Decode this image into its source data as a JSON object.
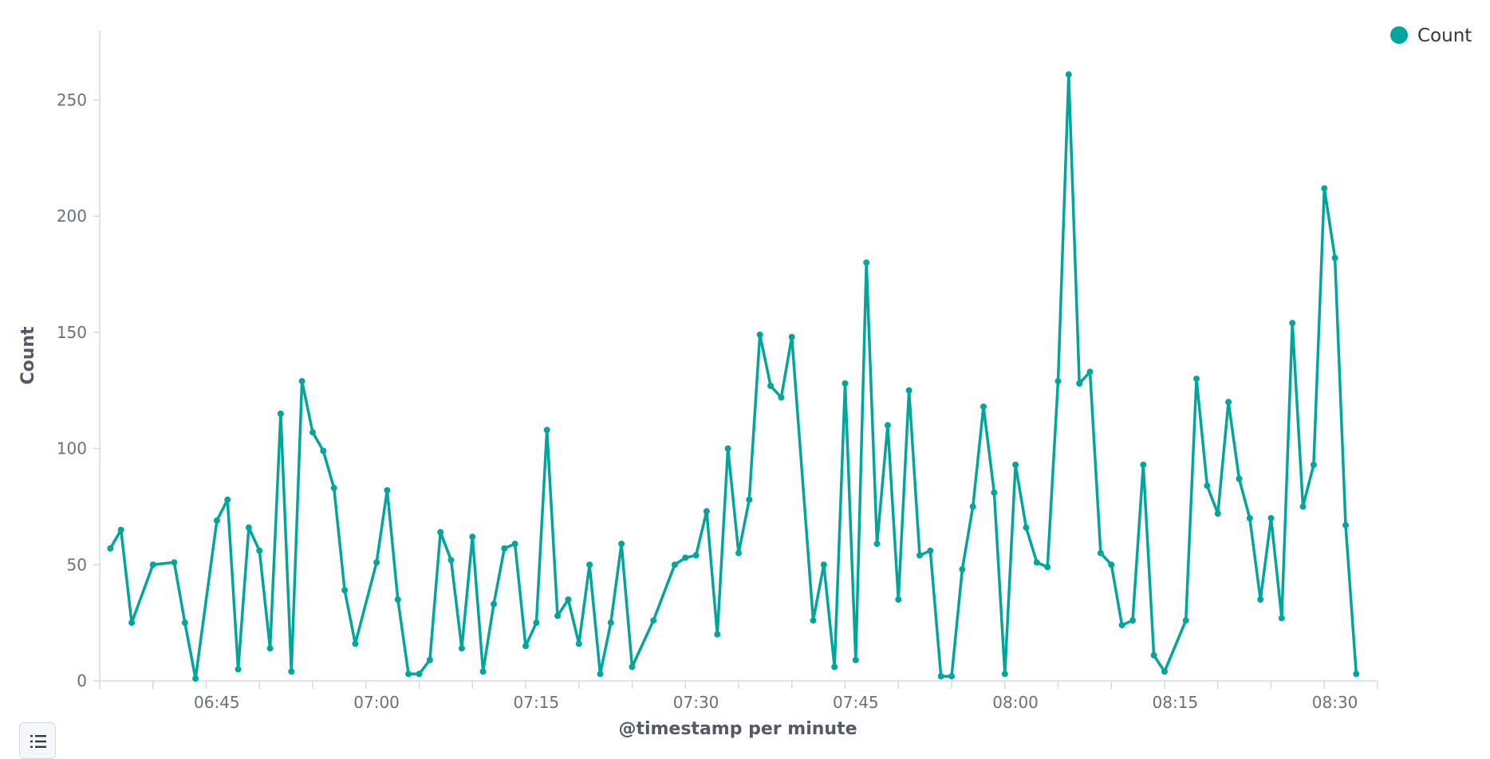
{
  "chart_data": {
    "type": "line",
    "xlabel": "@timestamp per minute",
    "ylabel": "Count",
    "x_ticks": [
      "06:45",
      "07:00",
      "07:15",
      "07:30",
      "07:45",
      "08:00",
      "08:15",
      "08:30"
    ],
    "y_ticks": [
      0,
      50,
      100,
      150,
      200,
      250
    ],
    "ylim": [
      0,
      280
    ],
    "xlim": [
      "06:34",
      "08:34"
    ],
    "grid": false,
    "legend_position": "top-right",
    "series": [
      {
        "name": "Count",
        "color": "#00a69b",
        "points": [
          {
            "x": "06:35",
            "y": 57
          },
          {
            "x": "06:36",
            "y": 65
          },
          {
            "x": "06:37",
            "y": 25
          },
          {
            "x": "06:39",
            "y": 50
          },
          {
            "x": "06:41",
            "y": 51
          },
          {
            "x": "06:42",
            "y": 25
          },
          {
            "x": "06:43",
            "y": 1
          },
          {
            "x": "06:45",
            "y": 69
          },
          {
            "x": "06:46",
            "y": 78
          },
          {
            "x": "06:47",
            "y": 5
          },
          {
            "x": "06:48",
            "y": 66
          },
          {
            "x": "06:49",
            "y": 56
          },
          {
            "x": "06:50",
            "y": 14
          },
          {
            "x": "06:51",
            "y": 115
          },
          {
            "x": "06:52",
            "y": 4
          },
          {
            "x": "06:53",
            "y": 129
          },
          {
            "x": "06:54",
            "y": 107
          },
          {
            "x": "06:55",
            "y": 99
          },
          {
            "x": "06:56",
            "y": 83
          },
          {
            "x": "06:57",
            "y": 39
          },
          {
            "x": "06:58",
            "y": 16
          },
          {
            "x": "07:00",
            "y": 51
          },
          {
            "x": "07:01",
            "y": 82
          },
          {
            "x": "07:02",
            "y": 35
          },
          {
            "x": "07:03",
            "y": 3
          },
          {
            "x": "07:04",
            "y": 3
          },
          {
            "x": "07:05",
            "y": 9
          },
          {
            "x": "07:06",
            "y": 64
          },
          {
            "x": "07:07",
            "y": 52
          },
          {
            "x": "07:08",
            "y": 14
          },
          {
            "x": "07:09",
            "y": 62
          },
          {
            "x": "07:10",
            "y": 4
          },
          {
            "x": "07:11",
            "y": 33
          },
          {
            "x": "07:12",
            "y": 57
          },
          {
            "x": "07:13",
            "y": 59
          },
          {
            "x": "07:14",
            "y": 15
          },
          {
            "x": "07:15",
            "y": 25
          },
          {
            "x": "07:16",
            "y": 108
          },
          {
            "x": "07:17",
            "y": 28
          },
          {
            "x": "07:18",
            "y": 35
          },
          {
            "x": "07:19",
            "y": 16
          },
          {
            "x": "07:20",
            "y": 50
          },
          {
            "x": "07:21",
            "y": 3
          },
          {
            "x": "07:22",
            "y": 25
          },
          {
            "x": "07:23",
            "y": 59
          },
          {
            "x": "07:24",
            "y": 6
          },
          {
            "x": "07:26",
            "y": 26
          },
          {
            "x": "07:28",
            "y": 50
          },
          {
            "x": "07:29",
            "y": 53
          },
          {
            "x": "07:30",
            "y": 54
          },
          {
            "x": "07:31",
            "y": 73
          },
          {
            "x": "07:32",
            "y": 20
          },
          {
            "x": "07:33",
            "y": 100
          },
          {
            "x": "07:34",
            "y": 55
          },
          {
            "x": "07:35",
            "y": 78
          },
          {
            "x": "07:36",
            "y": 149
          },
          {
            "x": "07:37",
            "y": 127
          },
          {
            "x": "07:38",
            "y": 122
          },
          {
            "x": "07:39",
            "y": 148
          },
          {
            "x": "07:41",
            "y": 26
          },
          {
            "x": "07:42",
            "y": 50
          },
          {
            "x": "07:43",
            "y": 6
          },
          {
            "x": "07:44",
            "y": 128
          },
          {
            "x": "07:45",
            "y": 9
          },
          {
            "x": "07:46",
            "y": 180
          },
          {
            "x": "07:47",
            "y": 59
          },
          {
            "x": "07:48",
            "y": 110
          },
          {
            "x": "07:49",
            "y": 35
          },
          {
            "x": "07:50",
            "y": 125
          },
          {
            "x": "07:51",
            "y": 54
          },
          {
            "x": "07:52",
            "y": 56
          },
          {
            "x": "07:53",
            "y": 2
          },
          {
            "x": "07:54",
            "y": 2
          },
          {
            "x": "07:55",
            "y": 48
          },
          {
            "x": "07:56",
            "y": 75
          },
          {
            "x": "07:57",
            "y": 118
          },
          {
            "x": "07:58",
            "y": 81
          },
          {
            "x": "07:59",
            "y": 3
          },
          {
            "x": "08:00",
            "y": 93
          },
          {
            "x": "08:01",
            "y": 66
          },
          {
            "x": "08:02",
            "y": 51
          },
          {
            "x": "08:03",
            "y": 49
          },
          {
            "x": "08:04",
            "y": 129
          },
          {
            "x": "08:05",
            "y": 261
          },
          {
            "x": "08:06",
            "y": 128
          },
          {
            "x": "08:07",
            "y": 133
          },
          {
            "x": "08:08",
            "y": 55
          },
          {
            "x": "08:09",
            "y": 50
          },
          {
            "x": "08:10",
            "y": 24
          },
          {
            "x": "08:11",
            "y": 26
          },
          {
            "x": "08:12",
            "y": 93
          },
          {
            "x": "08:13",
            "y": 11
          },
          {
            "x": "08:14",
            "y": 4
          },
          {
            "x": "08:16",
            "y": 26
          },
          {
            "x": "08:17",
            "y": 130
          },
          {
            "x": "08:18",
            "y": 84
          },
          {
            "x": "08:19",
            "y": 72
          },
          {
            "x": "08:20",
            "y": 120
          },
          {
            "x": "08:21",
            "y": 87
          },
          {
            "x": "08:22",
            "y": 70
          },
          {
            "x": "08:23",
            "y": 35
          },
          {
            "x": "08:24",
            "y": 70
          },
          {
            "x": "08:25",
            "y": 27
          },
          {
            "x": "08:26",
            "y": 154
          },
          {
            "x": "08:27",
            "y": 75
          },
          {
            "x": "08:28",
            "y": 93
          },
          {
            "x": "08:29",
            "y": 212
          },
          {
            "x": "08:30",
            "y": 182
          },
          {
            "x": "08:31",
            "y": 67
          },
          {
            "x": "08:32",
            "y": 3
          }
        ]
      }
    ]
  },
  "legend_toggle": {
    "icon": "list-icon"
  }
}
